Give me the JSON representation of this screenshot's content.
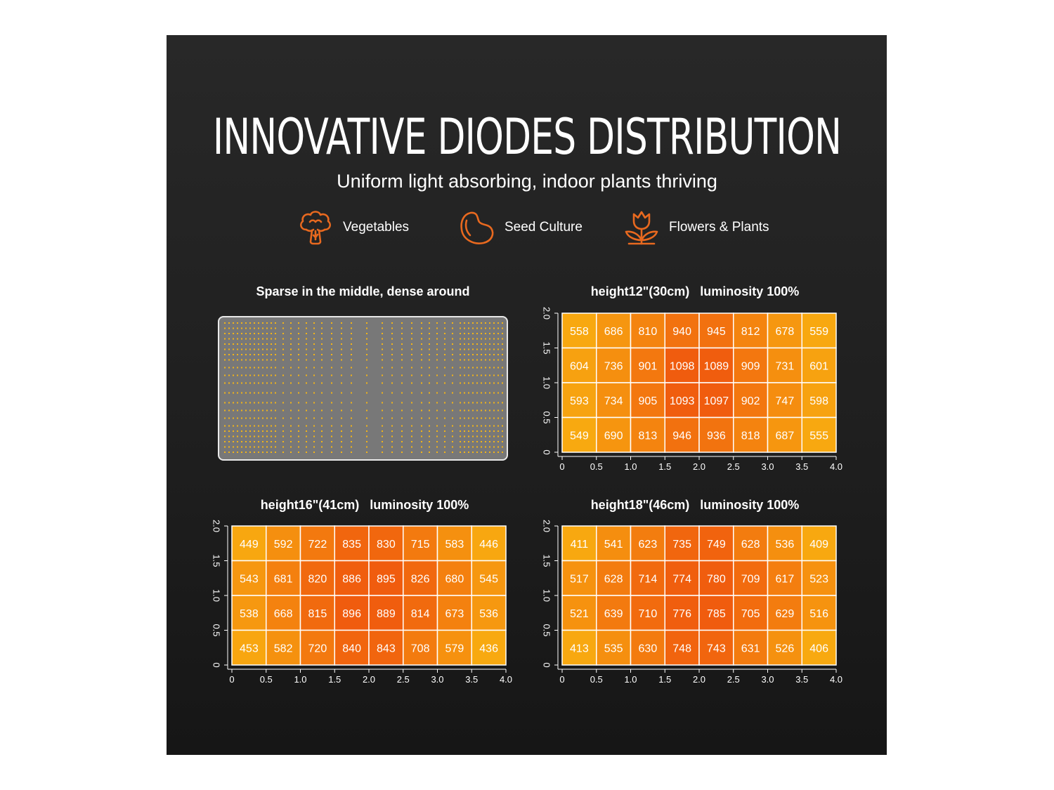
{
  "header": {
    "title": "INNOVATIVE DIODES DISTRIBUTION",
    "subtitle": "Uniform light absorbing, indoor plants thriving"
  },
  "categories": [
    {
      "label": "Vegetables",
      "icon": "broccoli-icon"
    },
    {
      "label": "Seed Culture",
      "icon": "bean-icon"
    },
    {
      "label": "Flowers & Plants",
      "icon": "tulip-icon"
    }
  ],
  "diode_layout": {
    "title": "Sparse in the middle, dense around",
    "diode_color": "#f2b418"
  },
  "colors": {
    "accent": "#e8691f",
    "scale_low": "#f8a910",
    "scale_high": "#f05c0e"
  },
  "chart_data": [
    {
      "type": "heatmap",
      "title": "height12\"(30cm)   luminosity 100%",
      "x_ticks": [
        "0",
        "0.5",
        "1.0",
        "1.5",
        "2.0",
        "2.5",
        "3.0",
        "3.5",
        "4.0"
      ],
      "y_ticks": [
        "0",
        "0.5",
        "1.0",
        "1.5",
        "2.0"
      ],
      "xlim": [
        0,
        4
      ],
      "ylim": [
        0,
        2
      ],
      "values": [
        [
          558,
          686,
          810,
          940,
          945,
          812,
          678,
          559
        ],
        [
          604,
          736,
          901,
          1098,
          1089,
          909,
          731,
          601
        ],
        [
          593,
          734,
          905,
          1093,
          1097,
          902,
          747,
          598
        ],
        [
          549,
          690,
          813,
          946,
          936,
          818,
          687,
          555
        ]
      ]
    },
    {
      "type": "heatmap",
      "title": "height16\"(41cm)   luminosity 100%",
      "x_ticks": [
        "0",
        "0.5",
        "1.0",
        "1.5",
        "2.0",
        "2.5",
        "3.0",
        "3.5",
        "4.0"
      ],
      "y_ticks": [
        "0",
        "0.5",
        "1.0",
        "1.5",
        "2.0"
      ],
      "xlim": [
        0,
        4
      ],
      "ylim": [
        0,
        2
      ],
      "values": [
        [
          449,
          592,
          722,
          835,
          830,
          715,
          583,
          446
        ],
        [
          543,
          681,
          820,
          886,
          895,
          826,
          680,
          545
        ],
        [
          538,
          668,
          815,
          896,
          889,
          814,
          673,
          536
        ],
        [
          453,
          582,
          720,
          840,
          843,
          708,
          579,
          436
        ]
      ]
    },
    {
      "type": "heatmap",
      "title": "height18\"(46cm)   luminosity 100%",
      "x_ticks": [
        "0",
        "0.5",
        "1.0",
        "1.5",
        "2.0",
        "2.5",
        "3.0",
        "3.5",
        "4.0"
      ],
      "y_ticks": [
        "0",
        "0.5",
        "1.0",
        "1.5",
        "2.0"
      ],
      "xlim": [
        0,
        4
      ],
      "ylim": [
        0,
        2
      ],
      "values": [
        [
          411,
          541,
          623,
          735,
          749,
          628,
          536,
          409
        ],
        [
          517,
          628,
          714,
          774,
          780,
          709,
          617,
          523
        ],
        [
          521,
          639,
          710,
          776,
          785,
          705,
          629,
          516
        ],
        [
          413,
          535,
          630,
          748,
          743,
          631,
          526,
          406
        ]
      ]
    }
  ]
}
